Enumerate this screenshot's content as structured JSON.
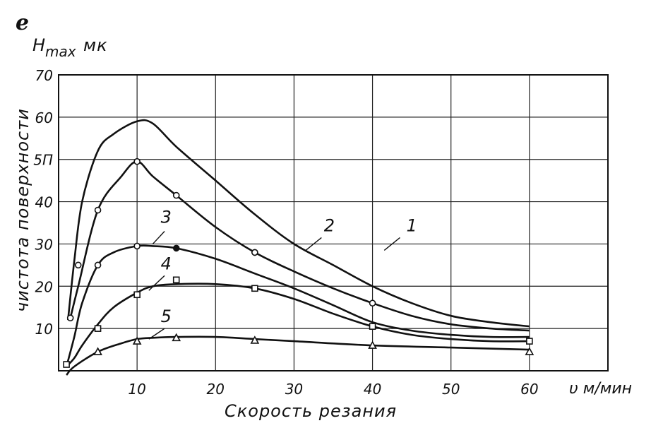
{
  "chart_data": {
    "type": "line",
    "corner_mark": "ℯ",
    "ylabel_top": "H",
    "ylabel_top_sub": "max",
    "ylabel_top_unit": "мк",
    "ylabel": "чистота поверхности",
    "xlabel": "Скорость резания",
    "x_unit_label": "υ м/мин",
    "xlim": [
      0,
      70
    ],
    "ylim": [
      0,
      70
    ],
    "x_ticks": [
      10,
      20,
      30,
      40,
      50,
      60
    ],
    "y_ticks": [
      10,
      20,
      30,
      40,
      50,
      60,
      70
    ],
    "y_tick_labels": [
      "10",
      "20",
      "30",
      "40",
      "5П",
      "60",
      "70"
    ],
    "grid": true,
    "series": [
      {
        "name": "1",
        "x": [
          1.2,
          2,
          3,
          5,
          7,
          10,
          12,
          15,
          20,
          25,
          30,
          35,
          40,
          45,
          50,
          55,
          60
        ],
        "y": [
          12,
          26,
          40,
          52,
          56,
          59,
          58.5,
          53,
          45,
          37,
          30,
          25,
          20,
          16,
          13,
          11.5,
          10.5
        ]
      },
      {
        "name": "2",
        "x": [
          1.5,
          2.5,
          5,
          8,
          10,
          12,
          15,
          20,
          25,
          30,
          35,
          40,
          45,
          50,
          55,
          60
        ],
        "y": [
          12.5,
          20,
          38,
          46,
          49.5,
          46,
          41.5,
          34,
          28,
          23.5,
          19.5,
          16,
          13,
          11,
          10,
          9.5
        ],
        "markers": [
          [
            1.5,
            12.5
          ],
          [
            2.5,
            25
          ],
          [
            5,
            38
          ],
          [
            10,
            49.5
          ],
          [
            15,
            41.5
          ],
          [
            25,
            28
          ],
          [
            40,
            16
          ]
        ],
        "marker": "circle"
      },
      {
        "name": "3",
        "x": [
          1,
          2,
          3,
          5,
          7,
          10,
          12,
          15,
          20,
          25,
          30,
          35,
          40,
          45,
          50,
          55,
          60
        ],
        "y": [
          1,
          8,
          16,
          25,
          28,
          29.5,
          29.5,
          29,
          26.5,
          23,
          19.5,
          15.5,
          11.5,
          9.5,
          8.5,
          8,
          8
        ],
        "markers": [
          [
            5,
            25
          ],
          [
            10,
            29.5
          ],
          [
            15,
            29
          ],
          [
            25,
            28
          ],
          [
            40,
            10.5
          ]
        ],
        "marker": "circle-mixed"
      },
      {
        "name": "4",
        "x": [
          1,
          2,
          3,
          5,
          7,
          10,
          12,
          15,
          20,
          25,
          30,
          35,
          40,
          45,
          50,
          55,
          60
        ],
        "y": [
          1,
          3,
          6,
          11,
          15,
          18.5,
          20,
          20.5,
          20.5,
          19.5,
          17,
          13.5,
          10.5,
          8.5,
          7.5,
          7,
          7
        ],
        "markers": [
          [
            1,
            1.5
          ],
          [
            5,
            10
          ],
          [
            10,
            18
          ],
          [
            15,
            21.5
          ],
          [
            25,
            19.5
          ],
          [
            40,
            10.5
          ],
          [
            60,
            7
          ]
        ],
        "marker": "square"
      },
      {
        "name": "5",
        "x": [
          1,
          2,
          5,
          8,
          10,
          12,
          15,
          20,
          25,
          30,
          40,
          50,
          60
        ],
        "y": [
          -1,
          1,
          4.5,
          6.5,
          7.5,
          7.8,
          8,
          8,
          7.5,
          7,
          6,
          5.5,
          5
        ],
        "markers": [
          [
            5,
            4.5
          ],
          [
            10,
            7
          ],
          [
            15,
            7.8
          ],
          [
            25,
            7.2
          ],
          [
            40,
            6
          ],
          [
            60,
            4.5
          ]
        ],
        "marker": "triangle"
      }
    ],
    "curve_labels": [
      {
        "text": "1",
        "x": 45,
        "y": 33,
        "lx1": 43.5,
        "ly1": 31.5,
        "lx2": 41.5,
        "ly2": 28.5
      },
      {
        "text": "2",
        "x": 34.5,
        "y": 33,
        "lx1": 33.5,
        "ly1": 31.5,
        "lx2": 31.5,
        "ly2": 28.5
      },
      {
        "text": "3",
        "x": 13.7,
        "y": 35,
        "lx1": 13.5,
        "ly1": 33,
        "lx2": 12,
        "ly2": 30
      },
      {
        "text": "4",
        "x": 13.7,
        "y": 24,
        "lx1": 13.5,
        "ly1": 22.5,
        "lx2": 11.5,
        "ly2": 19
      },
      {
        "text": "5",
        "x": 13.7,
        "y": 11.5,
        "lx1": 13.5,
        "ly1": 10,
        "lx2": 11.5,
        "ly2": 7.5
      }
    ]
  }
}
